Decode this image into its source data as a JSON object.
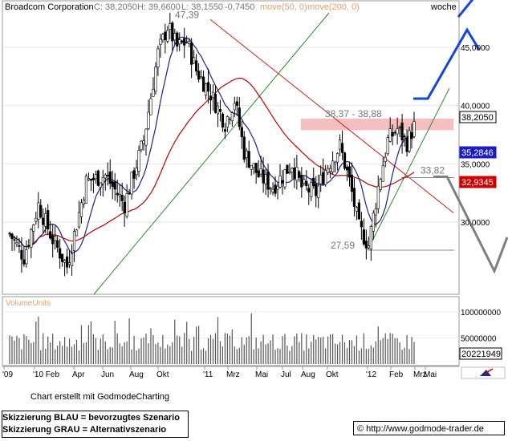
{
  "chart_data": {
    "type": "candlestick",
    "title": "Broadcom Corporation",
    "quote": {
      "close_label": "C: 38,2050",
      "high_label": "H: 39,6600",
      "low_label": "L: 38,1550",
      "change_label": "-0,7450"
    },
    "ma_labels": [
      {
        "name": "move(50, 0)",
        "color": "#1f1f8f"
      },
      {
        "name": "move(200, 0)",
        "color": "#c00000"
      }
    ],
    "timeframe": "woche",
    "price_axis": {
      "min": 25,
      "max": 50,
      "ticks": [
        30,
        35,
        40,
        45
      ],
      "tick_labels": [
        "30,0000",
        "35,0000",
        "40,0000",
        "45,0000"
      ]
    },
    "time_axis_labels": [
      "'09",
      "'10 Feb",
      "Apr",
      "Jun",
      "Aug",
      "Okt",
      "'11",
      "Mrz",
      "Mai",
      "Jul",
      "Aug",
      "Okt",
      "'12",
      "Feb",
      "Mrz",
      "Mai"
    ],
    "price_badges": [
      {
        "label": "38,2050",
        "value": 38.205,
        "bg": "#ffffff",
        "fg": "#000000",
        "border": "#000000"
      },
      {
        "label": "35,2846",
        "value": 35.2846,
        "bg": "#1c1cc4",
        "fg": "#ffffff",
        "border": "#1c1cc4"
      },
      {
        "label": "32,9345",
        "value": 32.9345,
        "bg": "#d00000",
        "fg": "#ffffff",
        "border": "#d00000"
      }
    ],
    "annotations": [
      {
        "text": "47,39",
        "price": 47.39
      },
      {
        "text": "38,37 - 38,88",
        "price": 38.88
      },
      {
        "text": "33,82",
        "price": 33.82
      },
      {
        "text": "27,59",
        "price": 27.59
      }
    ],
    "resistance_zone": {
      "from": 38.37,
      "to": 38.88,
      "color": "#f4b8b8"
    },
    "volume": {
      "label": "VolumeUnits",
      "ticks": [
        50000000,
        100000000
      ],
      "tick_labels": [
        "50000000",
        "100000000"
      ],
      "last_label": "20221949",
      "max": 120000000
    },
    "series_colors": {
      "bull": "#ffffff",
      "bear": "#000000",
      "ma50": "#1f1f8f",
      "ma200": "#c00000",
      "scenario_blue": "#1545e0",
      "scenario_gray": "#7f7f7f",
      "trend_green": "#2d8a2d",
      "trend_red": "#cc2020"
    }
  },
  "footer": {
    "credit": "Chart erstellt mit GodmodeCharting",
    "blue_scenario": "Skizzierung BLAU = bevorzugtes Szenario",
    "gray_scenario": "Skizzierung GRAU = Alternativszenario",
    "url": "http://www.godmode-trader.de",
    "url_icon": "copyright-icon"
  }
}
